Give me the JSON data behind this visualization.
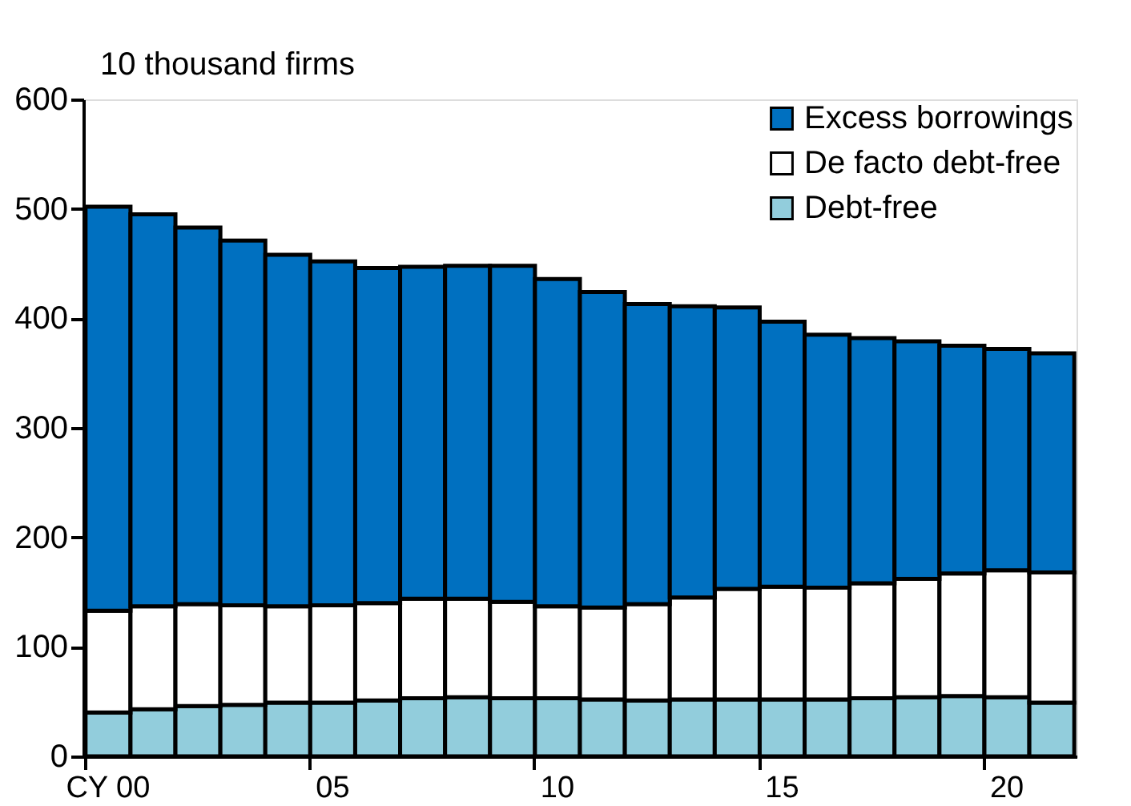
{
  "chart_data": {
    "type": "bar",
    "stacked": true,
    "ylabel": "10 thousand firms",
    "categories": [
      "CY 00",
      null,
      null,
      null,
      null,
      "05",
      null,
      null,
      null,
      null,
      "10",
      null,
      null,
      null,
      null,
      "15",
      null,
      null,
      null,
      null,
      "20",
      null
    ],
    "series": [
      {
        "name": "Debt-free",
        "color": "#92cddc",
        "values": [
          40,
          43,
          46,
          47,
          49,
          49,
          51,
          53,
          54,
          53,
          53,
          52,
          51,
          52,
          52,
          52,
          52,
          53,
          54,
          55,
          54,
          49
        ]
      },
      {
        "name": "De facto debt-free",
        "color": "#ffffff",
        "values": [
          93,
          94,
          93,
          91,
          88,
          89,
          89,
          91,
          90,
          88,
          84,
          84,
          88,
          93,
          101,
          103,
          102,
          105,
          108,
          112,
          116,
          119
        ]
      },
      {
        "name": "Excess borrowings",
        "color": "#0070c0",
        "values": [
          369,
          358,
          344,
          333,
          321,
          314,
          306,
          303,
          304,
          307,
          299,
          288,
          274,
          266,
          257,
          242,
          231,
          224,
          217,
          208,
          202,
          200
        ]
      }
    ],
    "ylim": [
      0,
      600
    ],
    "yticks": [
      0,
      100,
      200,
      300,
      400,
      500,
      600
    ],
    "grid": false,
    "legend": "top right"
  }
}
